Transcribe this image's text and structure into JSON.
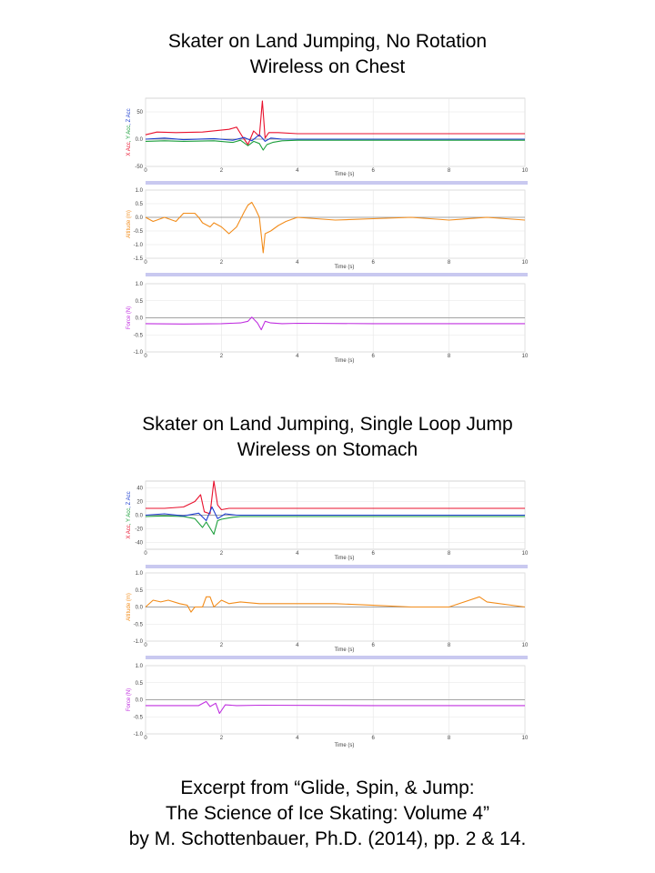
{
  "titles": {
    "fig1_line1": "Skater on Land Jumping, No Rotation",
    "fig1_line2": "Wireless on Chest",
    "fig2_line1": "Skater on Land Jumping, Single Loop Jump",
    "fig2_line2": "Wireless on Stomach"
  },
  "caption": {
    "line1": "Excerpt from “Glide, Spin, & Jump:",
    "line2": "The Science of Ice Skating: Volume 4”",
    "line3": "by M. Schottenbauer, Ph.D. (2014), pp. 2 & 14."
  },
  "colors": {
    "x_acc": "#e8112d",
    "y_acc": "#1a9e3a",
    "z_acc": "#1f3fd0",
    "altitude": "#f28c1a",
    "force": "#c030e0",
    "separator": "#c9c9f0",
    "grid": "#e6e6e6",
    "zero_line": "#888888"
  },
  "chart_data": [
    {
      "type": "line",
      "panel": "fig1-acceleration",
      "ylabel_parts": [
        "X Acc",
        "Y Acc",
        "Z Acc"
      ],
      "xlabel": "Time (s)",
      "xlim": [
        0,
        10
      ],
      "ylim": [
        -50,
        75
      ],
      "xticks": [
        0,
        2,
        4,
        6,
        8,
        10
      ],
      "yticks": [
        -50,
        0,
        50
      ],
      "series": [
        {
          "name": "X Acc",
          "color_key": "x_acc",
          "x": [
            0,
            0.3,
            0.8,
            1.5,
            2.2,
            2.4,
            2.55,
            2.7,
            2.85,
            3.0,
            3.08,
            3.15,
            3.25,
            3.5,
            4.0,
            6,
            8,
            10
          ],
          "y": [
            8,
            13,
            12,
            13,
            18,
            22,
            5,
            -10,
            15,
            5,
            70,
            2,
            12,
            12,
            10,
            10,
            10,
            10
          ]
        },
        {
          "name": "Y Acc",
          "color_key": "y_acc",
          "x": [
            0,
            0.5,
            1.0,
            1.8,
            2.3,
            2.5,
            2.7,
            2.85,
            3.0,
            3.1,
            3.2,
            3.35,
            3.6,
            4.0,
            6,
            8,
            10
          ],
          "y": [
            -4,
            -3,
            -4,
            -3,
            -6,
            -2,
            -12,
            -4,
            -8,
            -20,
            -10,
            -6,
            -3,
            -2,
            -2,
            -2,
            -2
          ]
        },
        {
          "name": "Z Acc",
          "color_key": "z_acc",
          "x": [
            0,
            0.5,
            1.0,
            1.8,
            2.3,
            2.6,
            2.8,
            3.0,
            3.15,
            3.3,
            3.6,
            4.0,
            6,
            8,
            10
          ],
          "y": [
            0,
            2,
            -1,
            1,
            -2,
            3,
            -3,
            8,
            -4,
            2,
            0,
            0,
            0,
            0,
            0
          ]
        }
      ]
    },
    {
      "type": "line",
      "panel": "fig1-altitude",
      "ylabel": "Altitude (m)",
      "xlabel": "Time (s)",
      "xlim": [
        0,
        10
      ],
      "ylim": [
        -1.5,
        1.0
      ],
      "xticks": [
        0,
        2,
        4,
        6,
        8,
        10
      ],
      "yticks": [
        -1.5,
        -1.0,
        -0.5,
        0.0,
        0.5,
        1.0
      ],
      "series": [
        {
          "name": "Altitude",
          "color_key": "altitude",
          "x": [
            0,
            0.2,
            0.5,
            0.8,
            1.0,
            1.3,
            1.4,
            1.5,
            1.7,
            1.8,
            2.0,
            2.2,
            2.4,
            2.6,
            2.7,
            2.8,
            2.9,
            3.0,
            3.1,
            3.15,
            3.3,
            3.5,
            3.7,
            4.0,
            5,
            6,
            7,
            8,
            9,
            10
          ],
          "y": [
            0,
            -0.15,
            0,
            -0.15,
            0.15,
            0.15,
            0,
            -0.2,
            -0.35,
            -0.2,
            -0.35,
            -0.6,
            -0.35,
            0.2,
            0.45,
            0.55,
            0.3,
            0,
            -1.3,
            -0.6,
            -0.5,
            -0.3,
            -0.15,
            0,
            -0.1,
            -0.05,
            0,
            -0.1,
            0,
            -0.1
          ]
        }
      ]
    },
    {
      "type": "line",
      "panel": "fig1-force",
      "ylabel": "Force (N)",
      "xlabel": "Time (s)",
      "xlim": [
        0,
        10
      ],
      "ylim": [
        -1.0,
        1.0
      ],
      "xticks": [
        0,
        2,
        4,
        6,
        8,
        10
      ],
      "yticks": [
        -1.0,
        -0.5,
        0.0,
        0.5,
        1.0
      ],
      "series": [
        {
          "name": "Force",
          "color_key": "force",
          "x": [
            0,
            1,
            2,
            2.5,
            2.7,
            2.8,
            2.95,
            3.05,
            3.15,
            3.3,
            3.6,
            4,
            6,
            8,
            10
          ],
          "y": [
            -0.17,
            -0.18,
            -0.17,
            -0.15,
            -0.1,
            0.02,
            -0.15,
            -0.35,
            -0.1,
            -0.15,
            -0.17,
            -0.16,
            -0.17,
            -0.17,
            -0.17
          ]
        }
      ]
    },
    {
      "type": "line",
      "panel": "fig2-acceleration",
      "ylabel_parts": [
        "X Acc",
        "Y Acc",
        "Z Acc"
      ],
      "xlabel": "Time (s)",
      "xlim": [
        0,
        10
      ],
      "ylim": [
        -50,
        50
      ],
      "xticks": [
        0,
        2,
        4,
        6,
        8,
        10
      ],
      "yticks": [
        -40,
        -20,
        0,
        20,
        40
      ],
      "series": [
        {
          "name": "X Acc",
          "color_key": "x_acc",
          "x": [
            0,
            0.5,
            1.0,
            1.3,
            1.45,
            1.55,
            1.7,
            1.8,
            1.9,
            2.0,
            2.2,
            2.5,
            3,
            6,
            8,
            10
          ],
          "y": [
            10,
            10,
            12,
            20,
            30,
            5,
            2,
            50,
            15,
            8,
            10,
            10,
            10,
            10,
            10,
            10
          ]
        },
        {
          "name": "Y Acc",
          "color_key": "y_acc",
          "x": [
            0,
            0.5,
            1.0,
            1.3,
            1.5,
            1.6,
            1.8,
            1.9,
            2.0,
            2.3,
            2.5,
            3,
            6,
            8,
            10
          ],
          "y": [
            -2,
            -1,
            -2,
            -5,
            -18,
            -10,
            -28,
            -8,
            -6,
            -3,
            -2,
            -2,
            -2,
            -2,
            -2
          ]
        },
        {
          "name": "Z Acc",
          "color_key": "z_acc",
          "x": [
            0,
            0.5,
            1.0,
            1.4,
            1.6,
            1.75,
            1.9,
            2.1,
            2.4,
            3,
            6,
            8,
            10
          ],
          "y": [
            0,
            2,
            -1,
            3,
            -8,
            12,
            -5,
            2,
            0,
            0,
            0,
            0,
            0
          ]
        }
      ]
    },
    {
      "type": "line",
      "panel": "fig2-altitude",
      "ylabel": "Altitude (m)",
      "xlabel": "Time (s)",
      "xlim": [
        0,
        10
      ],
      "ylim": [
        -1.0,
        1.0
      ],
      "xticks": [
        0,
        2,
        4,
        6,
        8,
        10
      ],
      "yticks": [
        -1.0,
        -0.5,
        0.0,
        0.5,
        1.0
      ],
      "series": [
        {
          "name": "Altitude",
          "color_key": "altitude",
          "x": [
            0,
            0.2,
            0.4,
            0.6,
            0.9,
            1.1,
            1.2,
            1.3,
            1.5,
            1.6,
            1.7,
            1.8,
            2.0,
            2.2,
            2.5,
            3,
            4,
            5,
            6,
            7,
            8,
            8.8,
            9,
            10
          ],
          "y": [
            0,
            0.2,
            0.15,
            0.2,
            0.1,
            0.05,
            -0.15,
            0,
            0,
            0.3,
            0.3,
            0,
            0.2,
            0.1,
            0.15,
            0.1,
            0.1,
            0.1,
            0.05,
            0,
            0,
            0.3,
            0.15,
            0
          ]
        }
      ]
    },
    {
      "type": "line",
      "panel": "fig2-force",
      "ylabel": "Force (N)",
      "xlabel": "Time (s)",
      "xlim": [
        0,
        10
      ],
      "ylim": [
        -1.0,
        1.0
      ],
      "xticks": [
        0,
        2,
        4,
        6,
        8,
        10
      ],
      "yticks": [
        -1.0,
        -0.5,
        0.0,
        0.5,
        1.0
      ],
      "series": [
        {
          "name": "Force",
          "color_key": "force",
          "x": [
            0,
            1,
            1.4,
            1.6,
            1.7,
            1.85,
            1.95,
            2.1,
            2.4,
            3,
            6,
            8,
            10
          ],
          "y": [
            -0.17,
            -0.17,
            -0.17,
            -0.05,
            -0.2,
            -0.1,
            -0.4,
            -0.15,
            -0.17,
            -0.16,
            -0.17,
            -0.17,
            -0.17
          ]
        }
      ]
    }
  ]
}
